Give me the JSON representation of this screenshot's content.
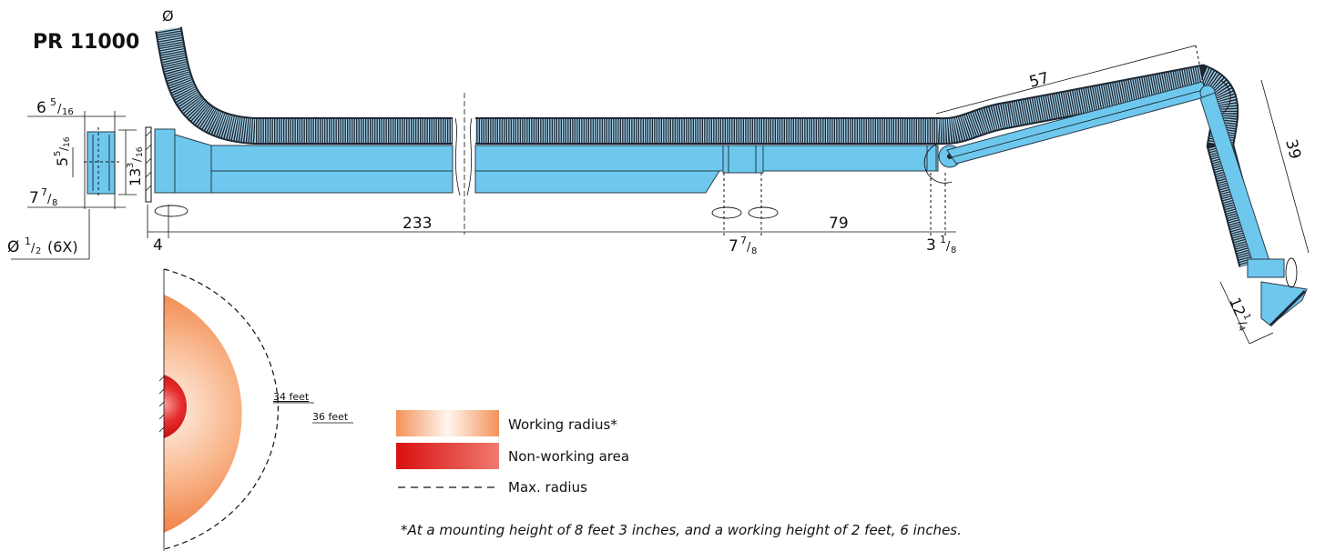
{
  "title": "PR 11000",
  "diameter_symbol": "Ø",
  "dimensions": {
    "d_6_5_16": {
      "whole": "6",
      "num": "5",
      "den": "16"
    },
    "d_5_5_16": {
      "whole": "5",
      "num": "5",
      "den": "16"
    },
    "d_13_3_16": {
      "whole": "13",
      "num": "3",
      "den": "16"
    },
    "d_7_7_8_left": {
      "whole": "7",
      "num": "7",
      "den": "8"
    },
    "d_bolt": {
      "prefix": "Ø",
      "num": "1",
      "den": "2",
      "suffix": "(6X)"
    },
    "d_4": "4",
    "d_233": "233",
    "d_7_7_8_mid": {
      "whole": "7",
      "num": "7",
      "den": "8"
    },
    "d_79": "79",
    "d_3_1_8": {
      "whole": "3",
      "num": "1",
      "den": "8"
    },
    "d_57": "57",
    "d_39": "39",
    "d_12_1_4": {
      "whole": "12",
      "num": "1",
      "den": "4"
    }
  },
  "radius_labels": {
    "working": "34 feet",
    "max": "36 feet"
  },
  "legend": {
    "working": "Working radius*",
    "non_working": "Non-working area",
    "max": "Max. radius"
  },
  "footnote": "*At a mounting height of 8 feet 3 inches, and a working height of 2 feet, 6 inches.",
  "colors": {
    "arm_blue": "#6ec8ee",
    "hose_dark": "#1c2733",
    "working_outer": "#f28850",
    "non_working": "#e01818"
  }
}
